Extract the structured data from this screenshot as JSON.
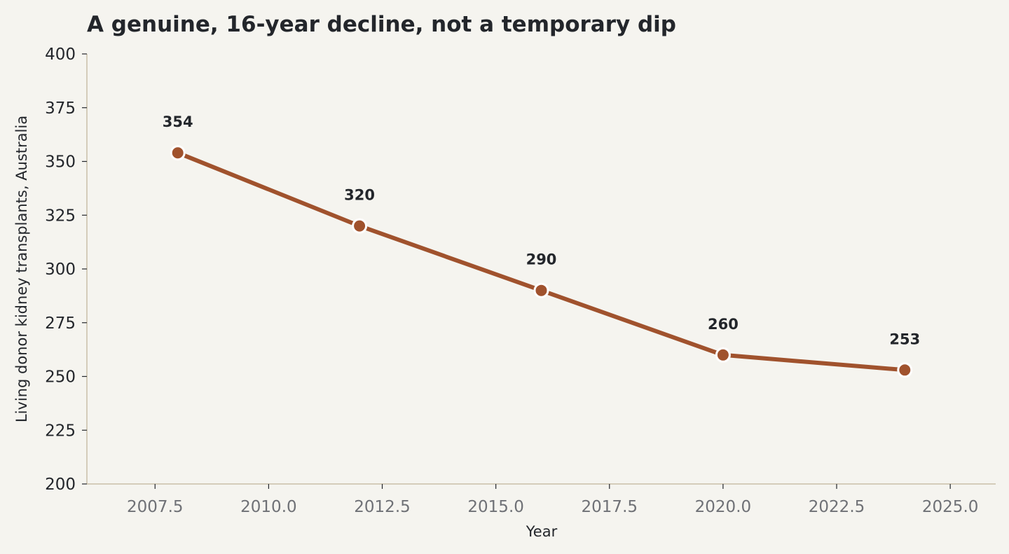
{
  "chart_data": {
    "type": "line",
    "title": "A genuine, 16-year decline, not a temporary dip",
    "xlabel": "Year",
    "ylabel": "Living donor kidney transplants, Australia",
    "xlim": [
      2006.0,
      2026.0
    ],
    "ylim": [
      200,
      400
    ],
    "xticks": [
      "2007.5",
      "2010.0",
      "2012.5",
      "2015.0",
      "2017.5",
      "2020.0",
      "2022.5",
      "2025.0"
    ],
    "yticks": [
      "200",
      "225",
      "250",
      "275",
      "300",
      "325",
      "350",
      "375",
      "400"
    ],
    "grid": false,
    "series": [
      {
        "x": [
          2008,
          2012,
          2016,
          2020,
          2024
        ],
        "values": [
          354,
          320,
          290,
          260,
          253
        ],
        "labels": [
          "354",
          "320",
          "290",
          "260",
          "253"
        ]
      }
    ],
    "colors": {
      "line": "#a0522d",
      "marker_edge": "#ffffff",
      "axis": "#c9bfa8",
      "background": "#f5f4ef"
    }
  }
}
